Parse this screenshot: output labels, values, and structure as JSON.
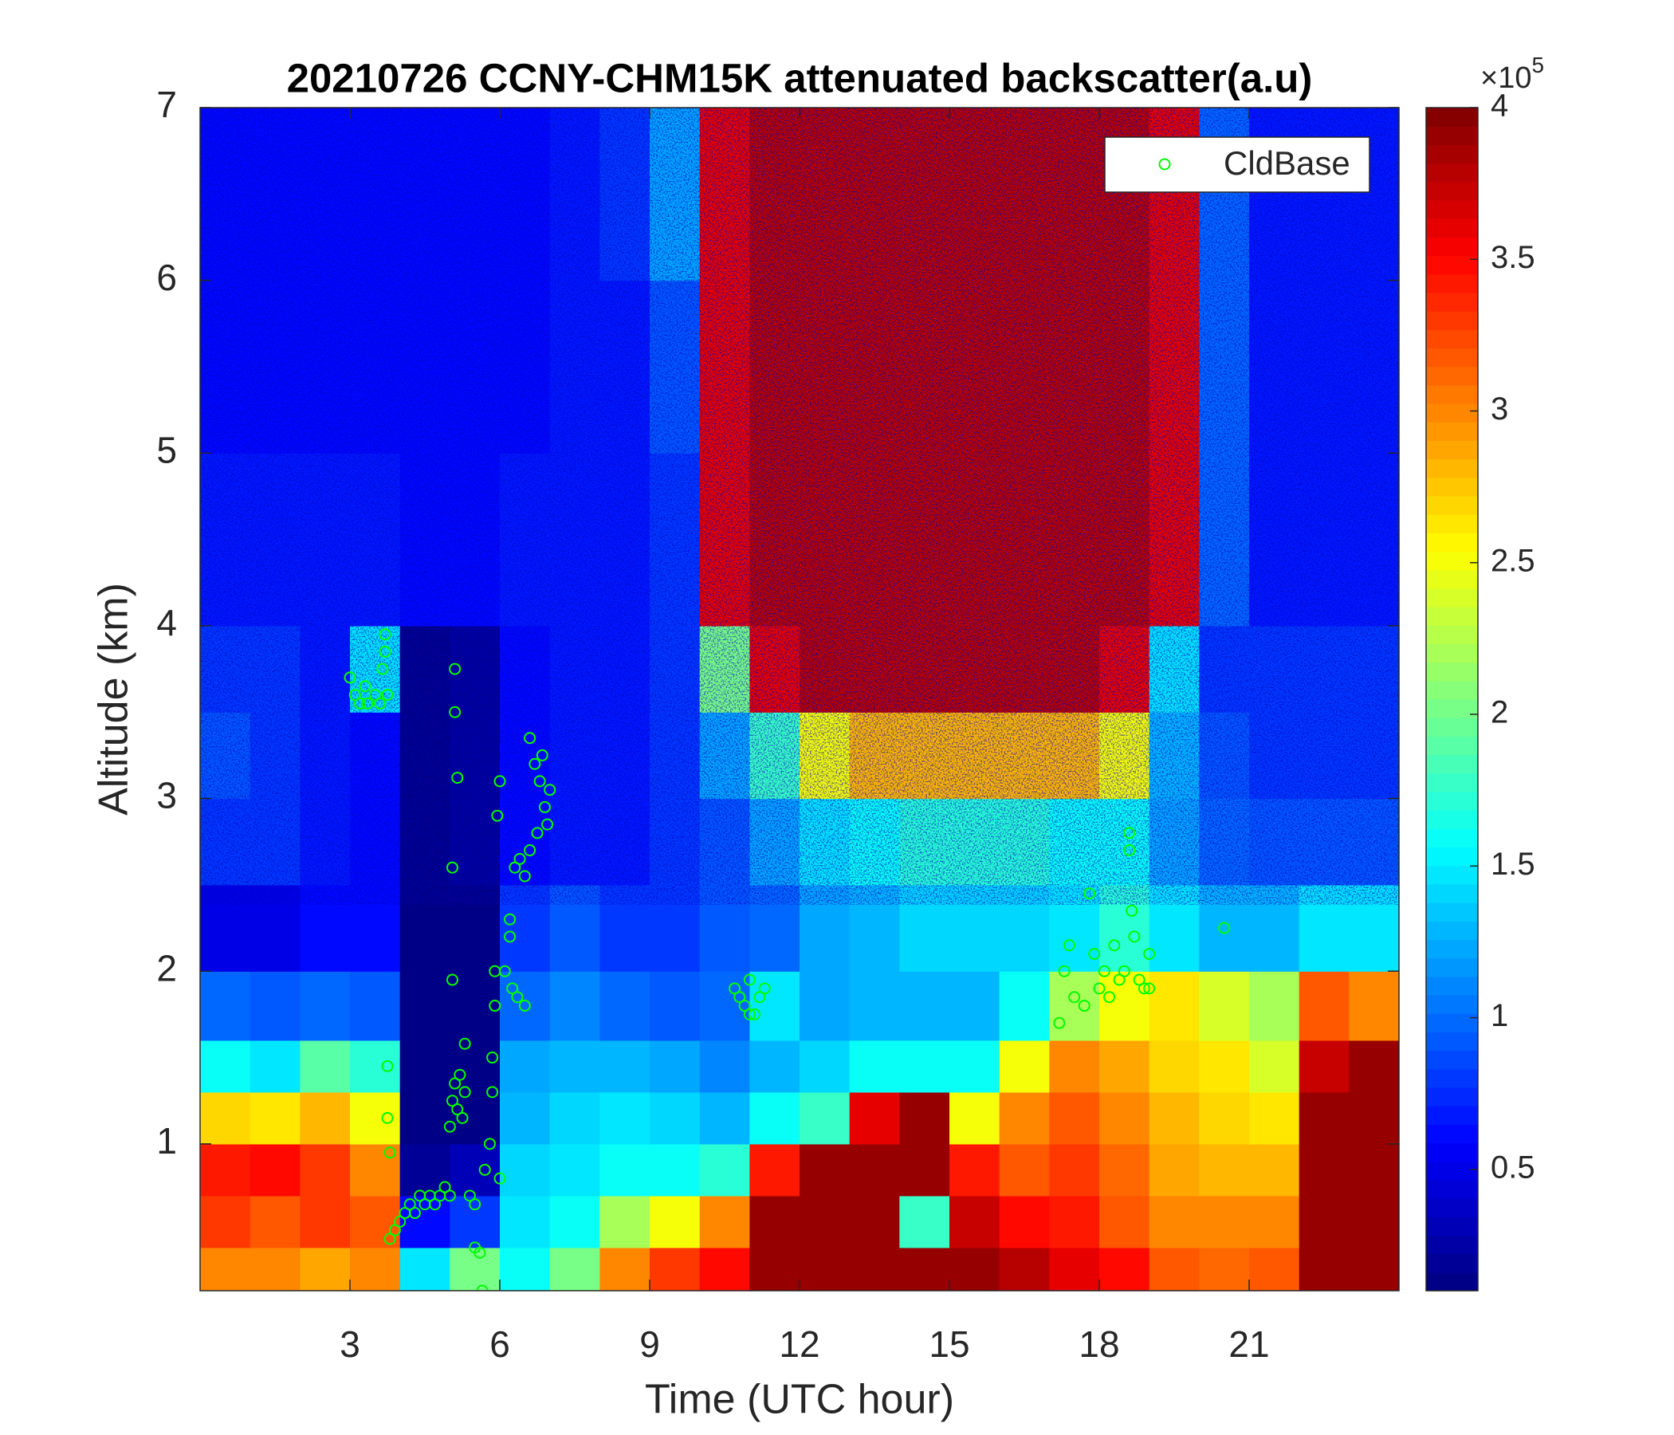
{
  "chart_data": {
    "type": "heatmap",
    "title": "20210726 CCNY-CHM15K attenuated backscatter(a.u)",
    "xlabel": "Time (UTC hour)",
    "ylabel": "Altitude (km)",
    "xlim": [
      0,
      24
    ],
    "ylim": [
      0.15,
      7
    ],
    "xticks": [
      3,
      6,
      9,
      12,
      15,
      18,
      21
    ],
    "yticks": [
      1,
      2,
      3,
      4,
      5,
      6,
      7
    ],
    "colormap": "jet",
    "clim": [
      0.1,
      4
    ],
    "cticks": [
      0.5,
      1,
      1.5,
      2,
      2.5,
      3,
      3.5,
      4
    ],
    "colorbar_multiplier": {
      "base": "×10",
      "exponent": "5"
    },
    "legend_position": "upper right",
    "x_edges": [
      0,
      1,
      2,
      3,
      4,
      5,
      6,
      7,
      8,
      9,
      10,
      11,
      12,
      13,
      14,
      15,
      16,
      17,
      18,
      19,
      20,
      21,
      22,
      23,
      24
    ],
    "y_edges": [
      0.15,
      0.4,
      0.7,
      1,
      1.3,
      1.6,
      2,
      2.5,
      3,
      3.5,
      4,
      5,
      6,
      7
    ],
    "z": [
      [
        3.0,
        3.0,
        2.9,
        3.0,
        1.5,
        2.0,
        1.6,
        2.0,
        3.0,
        3.3,
        3.5,
        3.9,
        3.9,
        3.9,
        3.9,
        3.9,
        3.8,
        3.6,
        3.5,
        3.2,
        3.1,
        3.2,
        3.9,
        3.9
      ],
      [
        3.3,
        3.2,
        3.3,
        3.2,
        0.6,
        0.8,
        1.5,
        1.6,
        2.2,
        2.5,
        3.0,
        3.9,
        3.9,
        3.9,
        1.8,
        3.7,
        3.5,
        3.4,
        3.2,
        3.0,
        3.0,
        3.0,
        3.9,
        3.9
      ],
      [
        3.4,
        3.5,
        3.3,
        3.0,
        0.2,
        0.3,
        1.4,
        1.5,
        1.6,
        1.6,
        1.7,
        3.4,
        3.9,
        3.9,
        3.9,
        3.4,
        3.2,
        3.3,
        3.1,
        2.9,
        2.8,
        2.8,
        3.9,
        3.9
      ],
      [
        2.7,
        2.6,
        2.8,
        2.5,
        0.15,
        0.15,
        1.3,
        1.4,
        1.5,
        1.4,
        1.3,
        1.6,
        1.8,
        3.6,
        3.9,
        2.5,
        3.0,
        3.2,
        3.0,
        2.8,
        2.7,
        2.6,
        3.9,
        3.9
      ],
      [
        1.6,
        1.5,
        1.9,
        1.7,
        0.15,
        0.15,
        1.2,
        1.3,
        1.3,
        1.2,
        1.1,
        1.3,
        1.4,
        1.6,
        1.6,
        1.6,
        2.5,
        3.0,
        2.9,
        2.7,
        2.6,
        2.4,
        3.7,
        3.9
      ],
      [
        1.0,
        0.9,
        1.0,
        0.9,
        0.15,
        0.15,
        1.0,
        1.1,
        1.0,
        0.9,
        1.0,
        1.5,
        1.2,
        1.3,
        1.3,
        1.3,
        1.6,
        2.2,
        2.5,
        2.6,
        2.4,
        2.2,
        3.2,
        3.0
      ],
      [
        0.5,
        0.5,
        0.6,
        0.6,
        0.15,
        0.15,
        0.8,
        0.9,
        0.8,
        0.8,
        0.9,
        1.0,
        1.2,
        1.3,
        1.4,
        1.4,
        1.4,
        1.5,
        1.7,
        1.5,
        1.3,
        1.3,
        1.5,
        1.5
      ],
      [
        0.8,
        0.8,
        0.7,
        0.6,
        0.15,
        0.2,
        0.6,
        0.7,
        0.7,
        0.8,
        0.9,
        1.2,
        1.5,
        1.6,
        1.7,
        1.7,
        1.7,
        1.6,
        1.6,
        1.2,
        1.0,
        0.9,
        0.9,
        0.9
      ],
      [
        0.9,
        0.8,
        0.7,
        0.6,
        0.15,
        0.2,
        0.6,
        0.65,
        0.7,
        0.8,
        1.2,
        1.8,
        2.5,
        2.8,
        2.8,
        2.8,
        2.8,
        2.8,
        2.5,
        1.3,
        0.9,
        0.8,
        0.8,
        0.8
      ],
      [
        0.8,
        0.8,
        0.7,
        1.5,
        0.15,
        0.2,
        0.6,
        0.7,
        0.7,
        0.8,
        2.0,
        3.6,
        3.8,
        3.8,
        3.8,
        3.8,
        3.8,
        3.8,
        3.6,
        1.5,
        0.8,
        0.8,
        0.8,
        0.8
      ],
      [
        0.7,
        0.7,
        0.7,
        0.7,
        0.6,
        0.6,
        0.7,
        0.7,
        0.7,
        0.8,
        3.6,
        3.8,
        3.8,
        3.8,
        3.8,
        3.8,
        3.8,
        3.8,
        3.8,
        3.6,
        1.0,
        0.7,
        0.7,
        0.7
      ],
      [
        0.6,
        0.6,
        0.6,
        0.6,
        0.6,
        0.6,
        0.6,
        0.7,
        0.7,
        0.9,
        3.6,
        3.8,
        3.8,
        3.8,
        3.8,
        3.8,
        3.8,
        3.8,
        3.8,
        3.6,
        1.0,
        0.7,
        0.7,
        0.7
      ],
      [
        0.6,
        0.6,
        0.6,
        0.6,
        0.6,
        0.6,
        0.6,
        0.7,
        0.8,
        1.2,
        3.6,
        3.8,
        3.8,
        3.8,
        3.8,
        3.8,
        3.8,
        3.8,
        3.8,
        3.6,
        1.0,
        0.7,
        0.7,
        0.7
      ]
    ],
    "series": [
      {
        "name": "CldBase",
        "type": "scatter",
        "color": "#00ff00",
        "x": [
          3.0,
          3.1,
          3.2,
          3.35,
          3.5,
          3.6,
          3.65,
          3.7,
          3.7,
          3.75,
          3.3,
          3.8,
          3.9,
          4.0,
          4.1,
          4.2,
          4.3,
          4.4,
          4.5,
          4.6,
          4.7,
          4.8,
          4.9,
          5.0,
          3.75,
          3.75,
          3.8,
          5.0,
          5.05,
          5.1,
          5.15,
          5.2,
          5.25,
          5.3,
          5.05,
          5.05,
          5.1,
          5.1,
          5.15,
          5.3,
          5.4,
          5.5,
          5.5,
          5.6,
          5.65,
          5.7,
          5.8,
          5.85,
          5.9,
          5.9,
          5.95,
          6.0,
          5.85,
          6.0,
          6.1,
          6.2,
          6.25,
          6.3,
          6.4,
          6.5,
          6.6,
          6.2,
          6.35,
          6.5,
          6.6,
          6.7,
          6.8,
          6.85,
          6.9,
          7.0,
          6.75,
          6.95,
          10.7,
          10.8,
          10.9,
          11.0,
          11.1,
          11.2,
          11.3,
          11.0,
          17.2,
          17.3,
          17.4,
          17.5,
          17.7,
          17.8,
          17.9,
          18.0,
          18.1,
          18.2,
          18.3,
          18.4,
          18.5,
          18.6,
          18.65,
          18.7,
          18.8,
          18.9,
          19.0,
          19.0,
          18.6,
          20.5
        ],
        "y": [
          3.7,
          3.6,
          3.55,
          3.55,
          3.6,
          3.55,
          3.75,
          3.85,
          3.95,
          3.6,
          3.65,
          0.45,
          0.5,
          0.55,
          0.6,
          0.65,
          0.6,
          0.7,
          0.65,
          0.7,
          0.65,
          0.7,
          0.75,
          0.7,
          1.45,
          1.15,
          0.95,
          1.1,
          1.25,
          1.35,
          1.2,
          1.4,
          1.15,
          1.3,
          1.95,
          2.6,
          3.5,
          3.75,
          3.12,
          1.58,
          0.7,
          0.65,
          0.4,
          0.37,
          0.15,
          0.85,
          1.0,
          1.5,
          1.8,
          2.0,
          2.9,
          3.1,
          1.3,
          0.8,
          2.0,
          2.2,
          1.9,
          2.6,
          2.65,
          2.55,
          2.7,
          2.3,
          1.85,
          1.8,
          3.35,
          3.2,
          3.1,
          3.25,
          2.95,
          3.05,
          2.8,
          2.85,
          1.9,
          1.85,
          1.8,
          1.95,
          1.75,
          1.85,
          1.9,
          1.75,
          1.7,
          2.0,
          2.15,
          1.85,
          1.8,
          2.45,
          2.1,
          1.9,
          2.0,
          1.85,
          2.15,
          1.95,
          2.0,
          2.7,
          2.35,
          2.2,
          1.95,
          1.9,
          2.1,
          1.9,
          2.8,
          2.25
        ]
      }
    ]
  }
}
